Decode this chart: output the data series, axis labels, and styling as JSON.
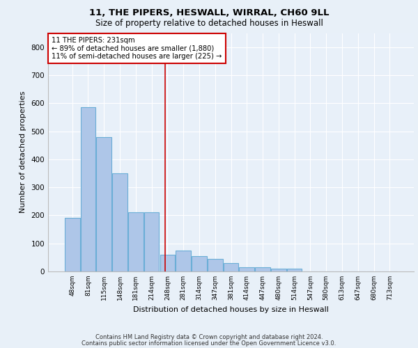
{
  "title1": "11, THE PIPERS, HESWALL, WIRRAL, CH60 9LL",
  "title2": "Size of property relative to detached houses in Heswall",
  "xlabel": "Distribution of detached houses by size in Heswall",
  "ylabel": "Number of detached properties",
  "categories": [
    "48sqm",
    "81sqm",
    "115sqm",
    "148sqm",
    "181sqm",
    "214sqm",
    "248sqm",
    "281sqm",
    "314sqm",
    "347sqm",
    "381sqm",
    "414sqm",
    "447sqm",
    "480sqm",
    "514sqm",
    "547sqm",
    "580sqm",
    "613sqm",
    "647sqm",
    "680sqm",
    "713sqm"
  ],
  "values": [
    190,
    585,
    480,
    350,
    210,
    210,
    60,
    75,
    55,
    45,
    30,
    15,
    15,
    10,
    10,
    0,
    0,
    0,
    0,
    0,
    0
  ],
  "bar_color": "#aec6e8",
  "bar_edge_color": "#6aaed6",
  "bar_edge_width": 0.8,
  "vline_x": 5.85,
  "vline_color": "#cc0000",
  "annotation_line1": "11 THE PIPERS: 231sqm",
  "annotation_line2": "← 89% of detached houses are smaller (1,880)",
  "annotation_line3": "11% of semi-detached houses are larger (225) →",
  "annotation_box_color": "#ffffff",
  "annotation_box_edge_color": "#cc0000",
  "ylim": [
    0,
    850
  ],
  "yticks": [
    0,
    100,
    200,
    300,
    400,
    500,
    600,
    700,
    800
  ],
  "bg_color": "#e8f0f8",
  "plot_bg_color": "#e8f0f9",
  "footer1": "Contains HM Land Registry data © Crown copyright and database right 2024.",
  "footer2": "Contains public sector information licensed under the Open Government Licence v3.0."
}
